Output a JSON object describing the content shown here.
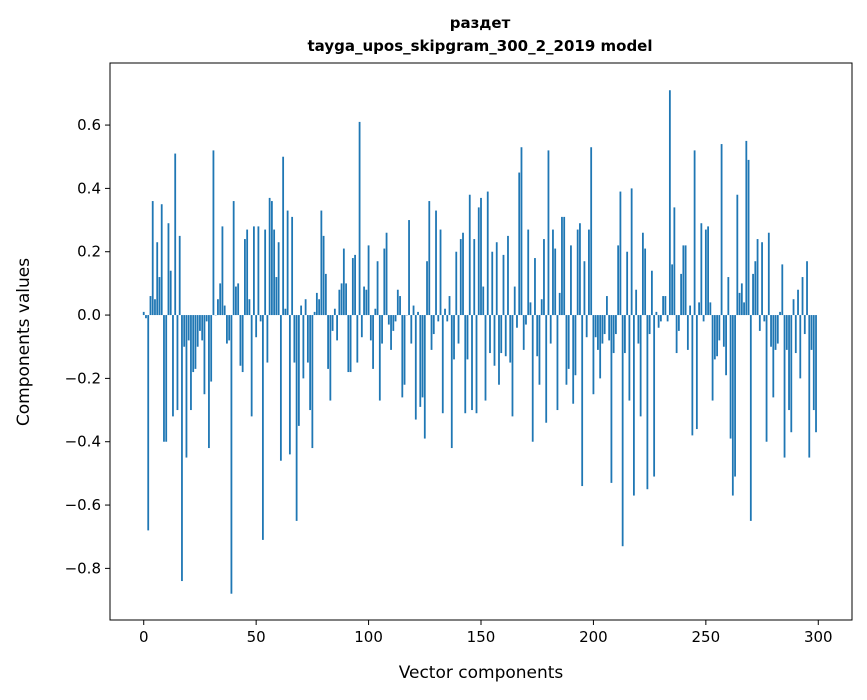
{
  "chart_data": {
    "type": "bar",
    "title": "раздет",
    "subtitle": "tayga_upos_skipgram_300_2_2019 model",
    "xlabel": "Vector components",
    "ylabel": "Components values",
    "xlim": [
      -15,
      315
    ],
    "ylim": [
      -0.963,
      0.796
    ],
    "xticks": [
      0,
      50,
      100,
      150,
      200,
      250,
      300
    ],
    "xtick_labels": [
      "0",
      "50",
      "100",
      "150",
      "200",
      "250",
      "300"
    ],
    "yticks": [
      -0.8,
      -0.6,
      -0.4,
      -0.2,
      0.0,
      0.2,
      0.4,
      0.6
    ],
    "ytick_labels": [
      "−0.8",
      "−0.6",
      "−0.4",
      "−0.2",
      "0.0",
      "0.2",
      "0.4",
      "0.6"
    ],
    "grid": false,
    "bar_color": "#1f77b4",
    "values": [
      0.01,
      -0.01,
      -0.68,
      0.06,
      0.36,
      0.05,
      0.23,
      0.12,
      0.35,
      -0.4,
      -0.4,
      0.29,
      0.14,
      -0.32,
      0.51,
      -0.3,
      0.25,
      -0.84,
      -0.1,
      -0.45,
      -0.08,
      -0.3,
      -0.18,
      -0.17,
      -0.1,
      -0.05,
      -0.08,
      -0.25,
      -0.02,
      -0.42,
      -0.21,
      0.52,
      0.0,
      0.05,
      0.1,
      0.28,
      0.03,
      -0.09,
      -0.08,
      -0.88,
      0.36,
      0.09,
      0.1,
      -0.16,
      -0.18,
      0.24,
      0.27,
      0.05,
      -0.32,
      0.28,
      -0.07,
      0.28,
      -0.02,
      -0.71,
      0.27,
      -0.15,
      0.37,
      0.36,
      0.27,
      0.12,
      0.23,
      -0.46,
      0.5,
      0.02,
      0.33,
      -0.44,
      0.31,
      -0.15,
      -0.65,
      -0.35,
      0.03,
      -0.2,
      0.05,
      -0.15,
      -0.3,
      -0.42,
      0.01,
      0.07,
      0.05,
      0.33,
      0.25,
      0.13,
      -0.17,
      -0.27,
      -0.05,
      0.02,
      -0.08,
      0.08,
      0.1,
      0.21,
      0.1,
      -0.18,
      -0.18,
      0.18,
      0.19,
      -0.15,
      0.61,
      -0.07,
      0.09,
      0.08,
      0.22,
      -0.08,
      -0.17,
      0.02,
      0.17,
      -0.27,
      -0.09,
      0.21,
      0.26,
      -0.03,
      -0.11,
      -0.05,
      -0.02,
      0.08,
      0.06,
      -0.26,
      -0.22,
      0.0,
      0.3,
      -0.09,
      0.03,
      -0.33,
      0.01,
      -0.29,
      -0.26,
      -0.39,
      0.17,
      0.36,
      -0.11,
      -0.06,
      0.33,
      -0.02,
      0.27,
      -0.31,
      0.02,
      -0.02,
      0.06,
      -0.42,
      -0.14,
      0.2,
      -0.09,
      0.24,
      0.26,
      -0.31,
      -0.14,
      0.38,
      -0.3,
      0.24,
      -0.31,
      0.34,
      0.37,
      0.09,
      -0.27,
      0.39,
      -0.12,
      0.2,
      -0.16,
      0.23,
      -0.22,
      -0.12,
      0.19,
      -0.13,
      0.25,
      -0.15,
      -0.32,
      0.09,
      -0.04,
      0.45,
      0.53,
      -0.11,
      -0.03,
      0.27,
      0.04,
      -0.4,
      0.18,
      -0.13,
      -0.22,
      0.05,
      0.24,
      -0.34,
      0.52,
      -0.09,
      0.27,
      0.21,
      -0.3,
      0.07,
      0.31,
      0.31,
      -0.22,
      -0.17,
      0.22,
      -0.28,
      -0.19,
      0.27,
      0.29,
      -0.54,
      0.17,
      -0.07,
      0.27,
      0.53,
      -0.25,
      -0.07,
      -0.11,
      -0.2,
      -0.09,
      -0.06,
      0.06,
      -0.08,
      -0.53,
      -0.12,
      -0.06,
      0.22,
      0.39,
      -0.73,
      -0.12,
      0.2,
      -0.27,
      0.4,
      -0.57,
      0.08,
      -0.09,
      -0.32,
      0.26,
      0.21,
      -0.55,
      -0.06,
      0.14,
      -0.51,
      0.01,
      -0.04,
      -0.02,
      0.06,
      0.06,
      -0.02,
      0.71,
      0.16,
      0.34,
      -0.12,
      -0.05,
      0.13,
      0.22,
      0.22,
      -0.11,
      0.03,
      -0.38,
      0.52,
      -0.36,
      0.04,
      0.29,
      -0.02,
      0.27,
      0.28,
      0.04,
      -0.27,
      -0.14,
      -0.13,
      -0.08,
      0.54,
      -0.1,
      -0.19,
      0.12,
      -0.39,
      -0.57,
      -0.51,
      0.38,
      0.07,
      0.1,
      0.04,
      0.55,
      0.49,
      -0.65,
      0.13,
      0.17,
      0.24,
      -0.05,
      0.23,
      -0.02,
      -0.4,
      0.26,
      -0.1,
      -0.26,
      -0.11,
      -0.09,
      0.01,
      0.16,
      -0.45,
      -0.11,
      -0.3,
      -0.37,
      0.05,
      -0.12,
      0.08,
      -0.2,
      0.12,
      -0.06,
      0.17,
      -0.45,
      -0.11,
      -0.3,
      -0.37
    ]
  }
}
